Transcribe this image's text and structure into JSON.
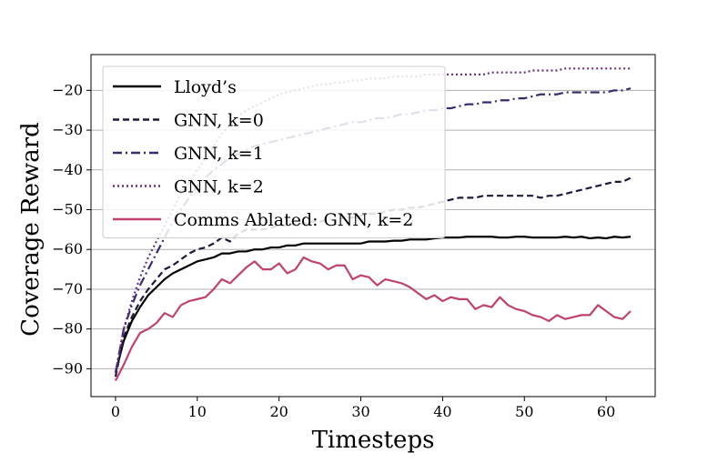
{
  "chart_data": {
    "type": "line",
    "title": "",
    "xlabel": "Timesteps",
    "ylabel": "Coverage Reward",
    "xlim": [
      -3,
      66
    ],
    "ylim": [
      -97,
      -11
    ],
    "xticks": [
      0,
      10,
      20,
      30,
      40,
      50,
      60
    ],
    "yticks": [
      -90,
      -80,
      -70,
      -60,
      -50,
      -40,
      -30,
      -20
    ],
    "xtick_labels": [
      "0",
      "10",
      "20",
      "30",
      "40",
      "50",
      "60"
    ],
    "ytick_labels": [
      "−90",
      "−80",
      "−70",
      "−60",
      "−50",
      "−40",
      "−30",
      "−20"
    ],
    "grid": "horizontal",
    "legend_position": "upper-left",
    "series": [
      {
        "name": "Lloyd’s",
        "color": "#000000",
        "style": "solid",
        "x": [
          0,
          1,
          2,
          3,
          4,
          5,
          6,
          7,
          8,
          9,
          10,
          11,
          12,
          13,
          14,
          15,
          16,
          17,
          18,
          19,
          20,
          21,
          22,
          23,
          24,
          25,
          26,
          27,
          28,
          29,
          30,
          31,
          32,
          33,
          34,
          35,
          36,
          37,
          38,
          39,
          40,
          41,
          42,
          43,
          44,
          45,
          46,
          47,
          48,
          49,
          50,
          51,
          52,
          53,
          54,
          55,
          56,
          57,
          58,
          59,
          60,
          61,
          62,
          63
        ],
        "y": [
          -91,
          -83,
          -78,
          -74.5,
          -71.5,
          -69.5,
          -67.5,
          -66,
          -65,
          -64,
          -63,
          -62.5,
          -62,
          -61,
          -61,
          -60.5,
          -60.5,
          -60,
          -60,
          -59.5,
          -59.5,
          -59,
          -59,
          -58.5,
          -58.5,
          -58.5,
          -58.5,
          -58.5,
          -58.5,
          -58.5,
          -58.5,
          -58,
          -58,
          -58,
          -57.8,
          -57.8,
          -57.5,
          -57.5,
          -57.5,
          -57.2,
          -57,
          -57,
          -57,
          -56.8,
          -56.8,
          -56.8,
          -56.8,
          -57,
          -57,
          -56.8,
          -56.8,
          -57,
          -57,
          -57,
          -57,
          -56.8,
          -57,
          -56.8,
          -57.2,
          -57,
          -57.2,
          -56.8,
          -57,
          -56.8
        ]
      },
      {
        "name": "GNN, k=0",
        "color": "#1c1a3a",
        "style": "dashed",
        "x": [
          0,
          1,
          2,
          3,
          4,
          5,
          6,
          7,
          8,
          9,
          10,
          11,
          12,
          13,
          14,
          15,
          16,
          17,
          18,
          19,
          20,
          21,
          22,
          23,
          24,
          25,
          26,
          27,
          28,
          29,
          30,
          31,
          32,
          33,
          34,
          35,
          36,
          37,
          38,
          39,
          40,
          41,
          42,
          43,
          44,
          45,
          46,
          47,
          48,
          49,
          50,
          51,
          52,
          53,
          54,
          55,
          56,
          57,
          58,
          59,
          60,
          61,
          62,
          63
        ],
        "y": [
          -92,
          -82,
          -77,
          -73,
          -70,
          -67.5,
          -65,
          -64,
          -62.5,
          -61,
          -60,
          -59.5,
          -58.5,
          -57,
          -58,
          -56,
          -55,
          -55,
          -55,
          -54.5,
          -54,
          -54,
          -53.5,
          -53.5,
          -53,
          -53,
          -52.5,
          -52.5,
          -52,
          -52,
          -51.5,
          -51,
          -51,
          -50.5,
          -50,
          -50,
          -49.5,
          -49.5,
          -49,
          -48.5,
          -48,
          -47.5,
          -47,
          -47,
          -47,
          -46.5,
          -46.5,
          -46.5,
          -46.5,
          -46.5,
          -46.5,
          -46.5,
          -47,
          -46.5,
          -46.5,
          -46,
          -45.5,
          -45,
          -44.5,
          -44,
          -43.5,
          -43,
          -43,
          -42
        ]
      },
      {
        "name": "GNN, k=1",
        "color": "#3b2a6e",
        "style": "dashdot",
        "x": [
          0,
          1,
          2,
          3,
          4,
          5,
          6,
          7,
          8,
          9,
          10,
          11,
          12,
          13,
          14,
          15,
          16,
          17,
          18,
          19,
          20,
          21,
          22,
          23,
          24,
          25,
          26,
          27,
          28,
          29,
          30,
          31,
          32,
          33,
          34,
          35,
          36,
          37,
          38,
          39,
          40,
          41,
          42,
          43,
          44,
          45,
          46,
          47,
          48,
          49,
          50,
          51,
          52,
          53,
          54,
          55,
          56,
          57,
          58,
          59,
          60,
          61,
          62,
          63
        ],
        "y": [
          -91,
          -80,
          -74,
          -69,
          -65,
          -61,
          -57,
          -53,
          -50,
          -47,
          -44,
          -42,
          -40,
          -38.5,
          -37,
          -36,
          -35,
          -34,
          -33.5,
          -33,
          -32.5,
          -32,
          -31.5,
          -31,
          -30.5,
          -30,
          -29.5,
          -29,
          -28.5,
          -28,
          -28,
          -27.5,
          -27,
          -27,
          -26.5,
          -26,
          -26,
          -25.5,
          -25,
          -25,
          -24.5,
          -24.5,
          -24,
          -23.5,
          -23.5,
          -23,
          -23,
          -22.5,
          -22.5,
          -22,
          -22,
          -21.5,
          -21,
          -21,
          -21,
          -20.5,
          -20.5,
          -20.5,
          -20.5,
          -20.5,
          -20.5,
          -20,
          -20,
          -19.5
        ]
      },
      {
        "name": "GNN, k=2",
        "color": "#6a2f7e",
        "style": "dotted",
        "x": [
          0,
          1,
          2,
          3,
          4,
          5,
          6,
          7,
          8,
          9,
          10,
          11,
          12,
          13,
          14,
          15,
          16,
          17,
          18,
          19,
          20,
          21,
          22,
          23,
          24,
          25,
          26,
          27,
          28,
          29,
          30,
          31,
          32,
          33,
          34,
          35,
          36,
          37,
          38,
          39,
          40,
          41,
          42,
          43,
          44,
          45,
          46,
          47,
          48,
          49,
          50,
          51,
          52,
          53,
          54,
          55,
          56,
          57,
          58,
          59,
          60,
          61,
          62,
          63
        ],
        "y": [
          -91,
          -80,
          -73,
          -67,
          -62,
          -58,
          -54,
          -50,
          -46,
          -43,
          -40,
          -37,
          -34,
          -31,
          -28.5,
          -26.5,
          -25,
          -24,
          -23,
          -22,
          -21,
          -20.5,
          -20,
          -19.5,
          -19,
          -18.5,
          -18.5,
          -18,
          -18,
          -17.5,
          -17.5,
          -17,
          -17,
          -17,
          -16.5,
          -16.5,
          -16.5,
          -16.5,
          -16,
          -16,
          -16,
          -16,
          -16,
          -16,
          -16,
          -16,
          -15.5,
          -15.5,
          -15.5,
          -15.5,
          -15.5,
          -15,
          -15,
          -15,
          -15,
          -14.5,
          -14.5,
          -14.5,
          -14.5,
          -14.5,
          -14.5,
          -14.5,
          -14.5,
          -14.5
        ]
      },
      {
        "name": "Comms Ablated: GNN, k=2",
        "color": "#c0416f",
        "style": "solid",
        "x": [
          0,
          1,
          2,
          3,
          4,
          5,
          6,
          7,
          8,
          9,
          10,
          11,
          12,
          13,
          14,
          15,
          16,
          17,
          18,
          19,
          20,
          21,
          22,
          23,
          24,
          25,
          26,
          27,
          28,
          29,
          30,
          31,
          32,
          33,
          34,
          35,
          36,
          37,
          38,
          39,
          40,
          41,
          42,
          43,
          44,
          45,
          46,
          47,
          48,
          49,
          50,
          51,
          52,
          53,
          54,
          55,
          56,
          57,
          58,
          59,
          60,
          61,
          62,
          63
        ],
        "y": [
          -93,
          -89,
          -84.5,
          -81,
          -80,
          -78.5,
          -76,
          -77,
          -74,
          -73,
          -72.5,
          -72,
          -70,
          -67.5,
          -68.5,
          -66.5,
          -64.5,
          -63,
          -65,
          -65,
          -63.5,
          -66,
          -65,
          -62,
          -63,
          -63.5,
          -65,
          -64,
          -64,
          -67.5,
          -66.5,
          -67,
          -69,
          -67.5,
          -68,
          -68.5,
          -69.5,
          -71,
          -72.5,
          -71.5,
          -73,
          -72,
          -72.5,
          -72.5,
          -75,
          -74,
          -74.5,
          -72,
          -74,
          -75,
          -75.5,
          -76.5,
          -77,
          -78,
          -76.5,
          -77.5,
          -77,
          -76.5,
          -76.5,
          -74,
          -75.5,
          -77,
          -77.5,
          -75.5
        ]
      }
    ]
  }
}
